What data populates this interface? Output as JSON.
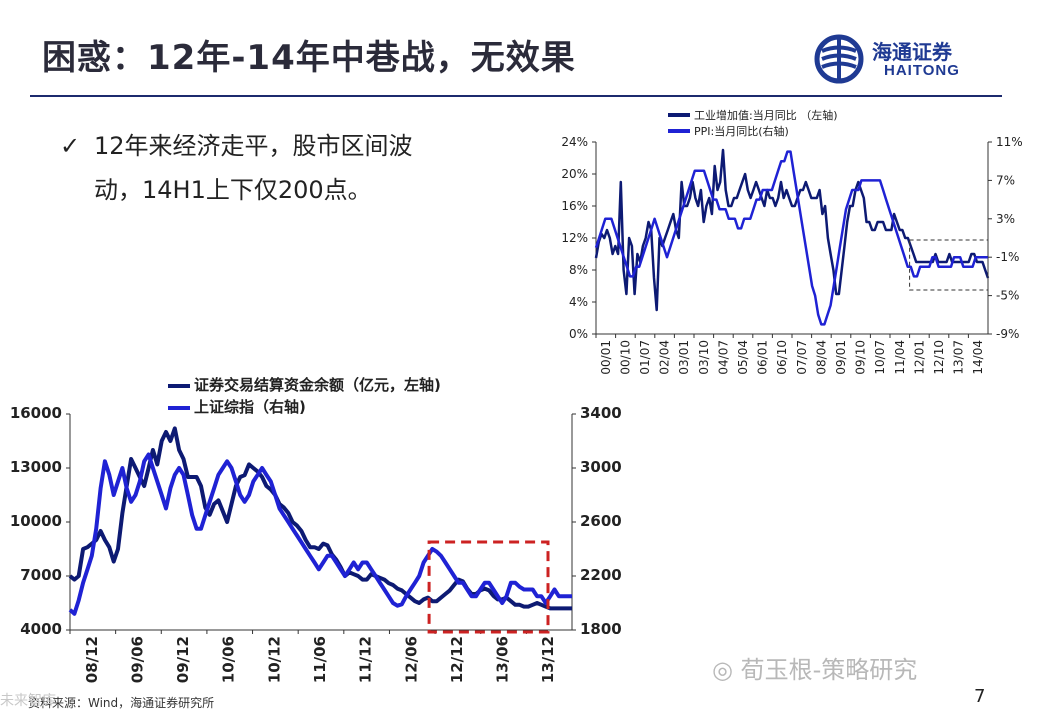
{
  "title": "困惑：12年-14年中巷战，无效果",
  "logo": {
    "cn": "海通证券",
    "en": "HAITONG"
  },
  "bullet": {
    "line1": "12年来经济走平，股市区间波",
    "line2": "动，14H1上下仅200点。"
  },
  "source": "资料来源：Wind，海通证券研究所",
  "page_number": "7",
  "watermark": "荀玉根-策略研究",
  "watermark_small": "未来智库",
  "colors": {
    "navy": "#0d1a73",
    "blue": "#1f22d4",
    "red": "#cc2222",
    "dark": "#222222"
  },
  "chart_data": [
    {
      "type": "line",
      "legend": [
        "工业增加值:当月同比 （左轴)",
        "PPI:当月同比(右轴)"
      ],
      "legend_placement": "top",
      "x_ticks": [
        "00/01",
        "00/10",
        "01/07",
        "02/04",
        "03/01",
        "03/10",
        "04/07",
        "05/04",
        "06/01",
        "06/10",
        "07/07",
        "08/04",
        "09/01",
        "09/10",
        "10/07",
        "11/04",
        "12/01",
        "12/10",
        "13/07",
        "14/04"
      ],
      "y_left": {
        "ticks": [
          "0%",
          "4%",
          "8%",
          "12%",
          "16%",
          "20%",
          "24%"
        ],
        "lim": [
          0,
          24
        ]
      },
      "y_right": {
        "ticks": [
          "-9%",
          "-5%",
          "-1%",
          "3%",
          "7%",
          "11%"
        ],
        "lim": [
          -9,
          11
        ]
      },
      "series": [
        {
          "name": "工业增加值:当月同比 （左轴)",
          "axis": "left",
          "values": [
            9.5,
            11.5,
            12.5,
            12,
            13,
            12,
            10,
            11,
            10,
            19,
            8,
            5,
            12,
            11,
            5,
            10,
            9,
            11,
            12,
            14,
            13,
            7,
            3,
            12,
            11,
            12,
            13,
            14,
            15,
            13,
            12,
            19,
            16,
            16,
            17,
            19,
            17,
            16,
            18,
            14,
            16,
            17,
            15,
            21,
            18,
            19,
            23,
            18,
            16,
            16,
            17,
            17,
            18,
            19,
            20,
            18,
            17,
            18,
            19,
            18,
            17,
            16,
            18,
            17,
            17,
            16,
            17,
            19,
            17,
            18,
            17,
            16,
            16,
            17,
            18,
            18,
            19,
            18,
            17,
            17,
            17,
            18,
            15,
            16,
            12,
            10,
            8,
            5,
            5,
            8,
            11,
            14,
            16,
            16,
            18,
            19,
            18,
            17,
            14,
            14,
            13,
            13,
            14,
            14,
            14,
            13,
            13,
            13,
            15,
            14,
            13,
            13,
            12,
            12,
            11,
            10,
            9,
            9,
            9,
            9,
            9,
            9,
            9,
            10,
            9,
            9,
            9,
            9,
            10,
            9,
            9,
            9,
            9,
            9,
            9,
            9,
            10,
            10,
            9,
            9,
            9,
            8,
            7
          ]
        },
        {
          "name": "PPI:当月同比(右轴)",
          "axis": "right",
          "values": [
            0,
            1,
            2,
            3,
            3,
            3,
            2,
            1,
            0,
            -1,
            -2,
            -3,
            -3,
            -2,
            -2,
            -1,
            0,
            1,
            2,
            3,
            2,
            1,
            0,
            -1,
            0,
            1,
            2,
            3,
            4,
            5,
            6,
            7,
            8,
            8,
            8,
            8,
            7,
            6,
            5,
            5,
            4,
            4,
            4,
            3,
            3,
            3,
            2,
            2,
            3,
            3,
            3,
            4,
            5,
            5,
            6,
            6,
            6,
            6,
            7,
            8,
            9,
            9,
            10,
            10,
            8,
            6,
            4,
            2,
            0,
            -2,
            -4,
            -5,
            -7,
            -8,
            -8,
            -7,
            -6,
            -4,
            -2,
            0,
            2,
            4,
            5,
            6,
            6,
            6,
            7,
            7,
            7,
            7,
            7,
            7,
            7,
            6,
            5,
            4,
            3,
            2,
            1,
            0,
            -1,
            -2,
            -2,
            -3,
            -3,
            -2,
            -2,
            -2,
            -2,
            -1,
            -1,
            -2,
            -2,
            -2,
            -2,
            -2,
            -1,
            -1,
            -1,
            -2,
            -2,
            -2,
            -2,
            -1,
            -1,
            -1,
            -1,
            -1
          ]
        }
      ],
      "highlight_box": {
        "style": "dashed",
        "x_range": [
          "12/01",
          "14/04"
        ]
      }
    },
    {
      "type": "line",
      "legend": [
        "证券交易结算资金余额（亿元，左轴)",
        "上证综指（右轴)"
      ],
      "legend_placement": "top",
      "x_ticks": [
        "08/12",
        "09/06",
        "09/12",
        "10/06",
        "10/12",
        "11/06",
        "11/12",
        "12/06",
        "12/12",
        "13/06",
        "13/12"
      ],
      "y_left": {
        "ticks": [
          "4000",
          "7000",
          "10000",
          "13000",
          "16000"
        ],
        "lim": [
          4000,
          16000
        ]
      },
      "y_right": {
        "ticks": [
          "1800",
          "2200",
          "2600",
          "3000",
          "3400"
        ],
        "lim": [
          1800,
          3400
        ]
      },
      "series": [
        {
          "name": "证券交易结算资金余额（亿元，左轴)",
          "axis": "left",
          "values": [
            7000,
            6800,
            7000,
            8500,
            8600,
            8800,
            9000,
            9500,
            9000,
            8600,
            7800,
            8500,
            10500,
            12000,
            13500,
            13000,
            12500,
            12000,
            13000,
            14000,
            13200,
            14500,
            15000,
            14500,
            15200,
            14000,
            13500,
            12500,
            12500,
            12500,
            12000,
            10800,
            10400,
            11000,
            11200,
            10600,
            10000,
            11000,
            12000,
            12500,
            12600,
            13200,
            13000,
            12800,
            12500,
            12000,
            11800,
            11500,
            11000,
            10800,
            10500,
            10000,
            9800,
            9500,
            9000,
            8600,
            8600,
            8500,
            8800,
            8700,
            8200,
            7900,
            7500,
            7000,
            7200,
            7100,
            7000,
            6800,
            6800,
            7100,
            7000,
            6900,
            6800,
            6600,
            6500,
            6300,
            6200,
            6000,
            5800,
            5600,
            5500,
            5700,
            5800,
            5600,
            5600,
            5800,
            6000,
            6200,
            6500,
            6800,
            6700,
            6300,
            6000,
            6000,
            6200,
            6300,
            6200,
            5900,
            5700,
            5700,
            5800,
            5600,
            5400,
            5400,
            5300,
            5300,
            5400,
            5500,
            5400,
            5300,
            5200,
            5200,
            5200,
            5200,
            5200,
            5200
          ]
        },
        {
          "name": "上证综指（右轴)",
          "axis": "right",
          "values": [
            1950,
            1920,
            2020,
            2150,
            2250,
            2350,
            2550,
            2850,
            3050,
            2950,
            2800,
            2900,
            3000,
            2850,
            2750,
            2800,
            2900,
            3050,
            3100,
            3000,
            2900,
            2800,
            2700,
            2850,
            2950,
            3000,
            2950,
            2800,
            2650,
            2550,
            2550,
            2650,
            2750,
            2850,
            2950,
            3000,
            3050,
            3000,
            2900,
            2800,
            2750,
            2800,
            2900,
            2950,
            3000,
            2950,
            2900,
            2800,
            2700,
            2650,
            2600,
            2550,
            2500,
            2450,
            2400,
            2350,
            2300,
            2250,
            2300,
            2350,
            2350,
            2300,
            2250,
            2200,
            2250,
            2300,
            2250,
            2300,
            2300,
            2250,
            2200,
            2150,
            2100,
            2050,
            2000,
            1980,
            1990,
            2050,
            2100,
            2150,
            2200,
            2300,
            2350,
            2400,
            2380,
            2350,
            2300,
            2250,
            2200,
            2150,
            2150,
            2100,
            2050,
            2050,
            2100,
            2150,
            2150,
            2100,
            2050,
            2000,
            2050,
            2150,
            2150,
            2120,
            2100,
            2100,
            2100,
            2050,
            2050,
            2000,
            2050,
            2100,
            2050,
            2050,
            2050,
            2050
          ]
        }
      ],
      "highlight_box": {
        "style": "dashed",
        "color": "red",
        "x_range": [
          "12/12",
          "13/12"
        ]
      }
    }
  ]
}
